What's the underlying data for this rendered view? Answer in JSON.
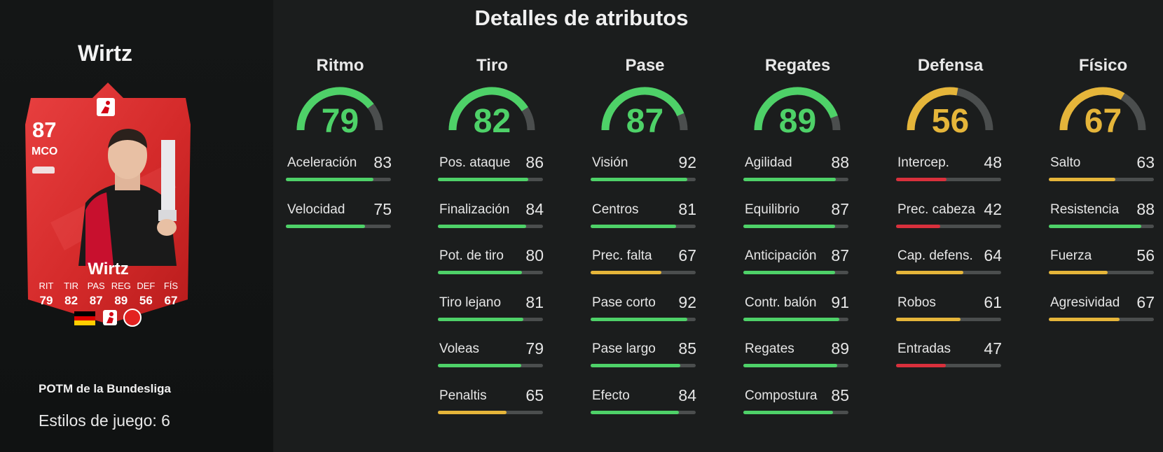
{
  "player": {
    "name": "Wirtz",
    "card": {
      "rating": "87",
      "position": "MCO",
      "name": "Wirtz",
      "stat_labels": [
        "RIT",
        "TIR",
        "PAS",
        "REG",
        "DEF",
        "FÍS"
      ],
      "stat_values": [
        "79",
        "82",
        "87",
        "89",
        "56",
        "67"
      ]
    },
    "card_type": "POTM de la Bundesliga",
    "playstyles": "Estilos de juego: 6"
  },
  "title": "Detalles de atributos",
  "colors": {
    "green": "#4ed168",
    "yellow": "#e5b53a",
    "red": "#d9303c",
    "track": "#4b4e4e",
    "card_red": "#d82d2d"
  },
  "categories": [
    {
      "name": "Ritmo",
      "value": 79,
      "color": "green",
      "stats": [
        {
          "name": "Aceleración",
          "value": 83,
          "color": "green"
        },
        {
          "name": "Velocidad",
          "value": 75,
          "color": "green"
        }
      ]
    },
    {
      "name": "Tiro",
      "value": 82,
      "color": "green",
      "stats": [
        {
          "name": "Pos. ataque",
          "value": 86,
          "color": "green"
        },
        {
          "name": "Finalización",
          "value": 84,
          "color": "green"
        },
        {
          "name": "Pot. de tiro",
          "value": 80,
          "color": "green"
        },
        {
          "name": "Tiro lejano",
          "value": 81,
          "color": "green"
        },
        {
          "name": "Voleas",
          "value": 79,
          "color": "green"
        },
        {
          "name": "Penaltis",
          "value": 65,
          "color": "yellow"
        }
      ]
    },
    {
      "name": "Pase",
      "value": 87,
      "color": "green",
      "stats": [
        {
          "name": "Visión",
          "value": 92,
          "color": "green"
        },
        {
          "name": "Centros",
          "value": 81,
          "color": "green"
        },
        {
          "name": "Prec. falta",
          "value": 67,
          "color": "yellow"
        },
        {
          "name": "Pase corto",
          "value": 92,
          "color": "green"
        },
        {
          "name": "Pase largo",
          "value": 85,
          "color": "green"
        },
        {
          "name": "Efecto",
          "value": 84,
          "color": "green"
        }
      ]
    },
    {
      "name": "Regates",
      "value": 89,
      "color": "green",
      "stats": [
        {
          "name": "Agilidad",
          "value": 88,
          "color": "green"
        },
        {
          "name": "Equilibrio",
          "value": 87,
          "color": "green"
        },
        {
          "name": "Anticipación",
          "value": 87,
          "color": "green"
        },
        {
          "name": "Contr. balón",
          "value": 91,
          "color": "green"
        },
        {
          "name": "Regates",
          "value": 89,
          "color": "green"
        },
        {
          "name": "Compostura",
          "value": 85,
          "color": "green"
        }
      ]
    },
    {
      "name": "Defensa",
      "value": 56,
      "color": "yellow",
      "stats": [
        {
          "name": "Intercep.",
          "value": 48,
          "color": "red"
        },
        {
          "name": "Prec. cabeza",
          "value": 42,
          "color": "red"
        },
        {
          "name": "Cap. defens.",
          "value": 64,
          "color": "yellow"
        },
        {
          "name": "Robos",
          "value": 61,
          "color": "yellow"
        },
        {
          "name": "Entradas",
          "value": 47,
          "color": "red"
        }
      ]
    },
    {
      "name": "Físico",
      "value": 67,
      "color": "yellow",
      "stats": [
        {
          "name": "Salto",
          "value": 63,
          "color": "yellow"
        },
        {
          "name": "Resistencia",
          "value": 88,
          "color": "green"
        },
        {
          "name": "Fuerza",
          "value": 56,
          "color": "yellow"
        },
        {
          "name": "Agresividad",
          "value": 67,
          "color": "yellow"
        }
      ]
    }
  ]
}
